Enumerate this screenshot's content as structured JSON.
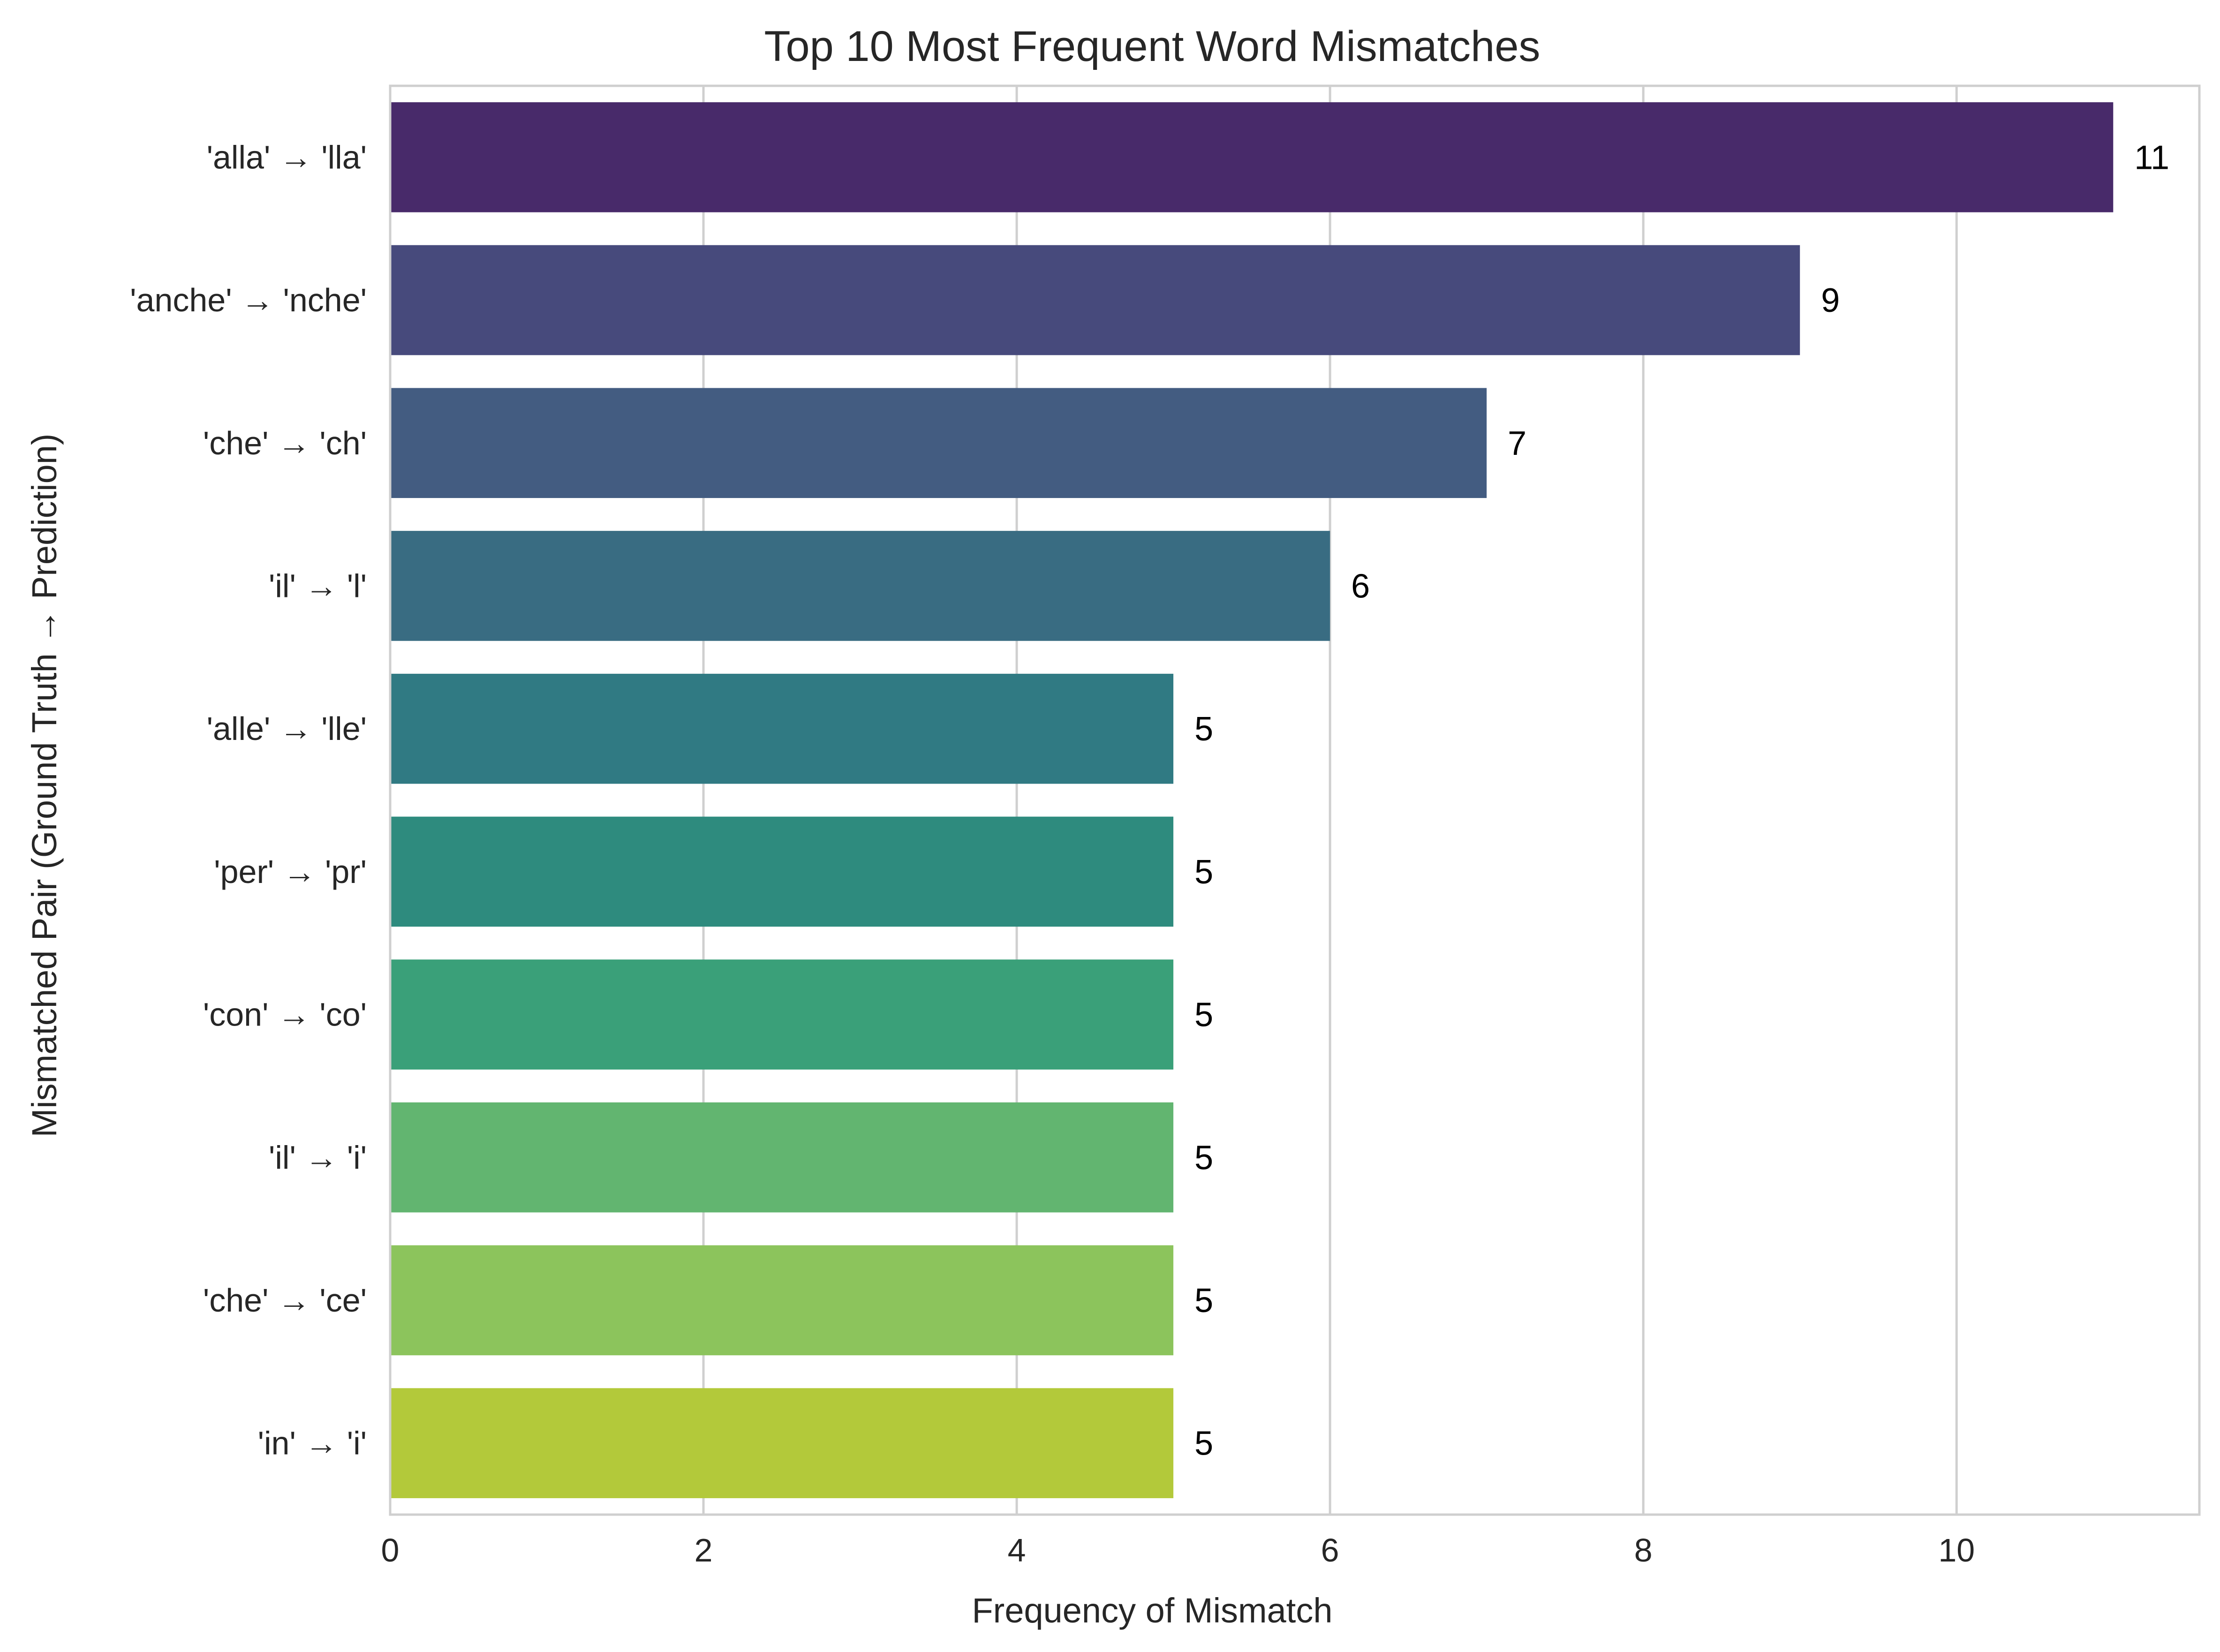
{
  "chart_data": {
    "type": "bar",
    "orientation": "horizontal",
    "title": "Top 10 Most Frequent Word Mismatches",
    "xlabel": "Frequency of Mismatch",
    "ylabel": "Mismatched Pair (Ground Truth → Prediction)",
    "categories": [
      "'alla' → 'lla'",
      "'anche' → 'nche'",
      "'che' → 'ch'",
      "'il' → 'l'",
      "'alle' → 'lle'",
      "'per' → 'pr'",
      "'con' → 'co'",
      "'il' → 'i'",
      "'che' → 'ce'",
      "'in' → 'i'"
    ],
    "values": [
      11,
      9,
      7,
      6,
      5,
      5,
      5,
      5,
      5,
      5
    ],
    "value_labels": [
      "11",
      "9",
      "7",
      "6",
      "5",
      "5",
      "5",
      "5",
      "5",
      "5"
    ],
    "colors": [
      "#482a6a",
      "#474a7c",
      "#435c81",
      "#396c82",
      "#307a83",
      "#2e8b7e",
      "#3aa079",
      "#62b570",
      "#8cc45c",
      "#b3c93a"
    ],
    "xlim": [
      0,
      11.55
    ],
    "xticks": [
      0,
      2,
      4,
      6,
      8,
      10
    ],
    "xtick_labels": [
      "0",
      "2",
      "4",
      "6",
      "8",
      "10"
    ],
    "grid": true,
    "style": {
      "grid_color": "#cfcfcf",
      "spine_color": "#cfcfcf",
      "text_color": "#262626"
    }
  }
}
